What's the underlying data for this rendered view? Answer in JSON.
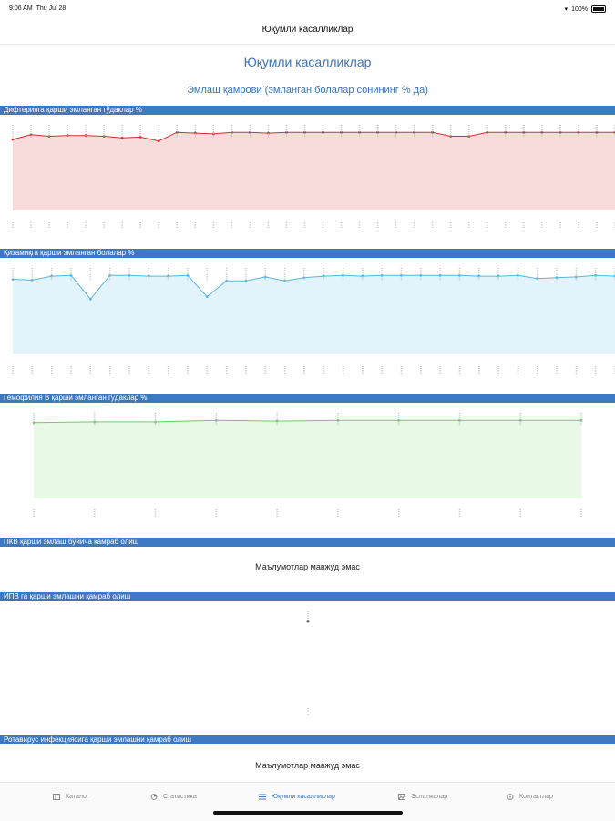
{
  "status_bar": {
    "time": "9:06 AM",
    "date": "Thu Jul 28",
    "battery": "100%"
  },
  "nav": {
    "title": "Юқумли касалликлар"
  },
  "page": {
    "title": "Юқумли касалликлар",
    "subtitle": "Эмлаш қамрови (эмланган болалар сонининг % да)"
  },
  "sections": [
    {
      "title": "Дифтерияга қарши эмланган гўдаклар %"
    },
    {
      "title": "Қизамиқга қарши эмланган болалар %"
    },
    {
      "title": "Гемофилия В қарши эмланган гўдаклар %"
    },
    {
      "title": "ПКВ қарши эмлаш бўйича қамраб олиш",
      "no_data": "Маълумотлар мавжуд эмас"
    },
    {
      "title": "ИПВ га қарши эмлашни қамраб олиш"
    },
    {
      "title": "Ротавирус инфекциясига қарши эмлашни қамраб олиш",
      "no_data": "Маълумотлар мавжуд эмас"
    }
  ],
  "tabs": [
    {
      "label": "Каталог",
      "icon": "catalog-icon"
    },
    {
      "label": "Статистика",
      "icon": "statistics-icon"
    },
    {
      "label": "Юқумли касалликлар",
      "icon": "diseases-icon",
      "active": true
    },
    {
      "label": "Эслатмалар",
      "icon": "reminders-icon"
    },
    {
      "label": "Контактлар",
      "icon": "contacts-icon"
    }
  ],
  "chart_data": [
    {
      "type": "area",
      "title": "Дифтерияга қарши эмланган гўдаклар %",
      "color": "#d0312d",
      "fill": "#f8dcdc",
      "values": [
        90,
        96,
        94,
        95,
        95,
        94,
        92,
        93,
        88,
        99,
        98,
        97,
        99,
        99,
        98,
        99,
        99,
        99,
        99,
        99,
        99,
        99,
        99,
        99,
        94,
        94,
        99,
        99,
        99,
        99,
        99,
        99,
        99,
        99
      ],
      "ylim": [
        0,
        120
      ]
    },
    {
      "type": "area",
      "title": "Қизамиқга қарши эмланган болалар %",
      "color": "#5ab6dd",
      "fill": "#e3f3fb",
      "values": [
        94,
        93,
        98,
        99,
        69,
        99,
        99,
        98,
        98,
        99,
        72,
        92,
        92,
        97,
        92,
        96,
        98,
        99,
        98,
        99,
        99,
        99,
        99,
        99,
        98,
        98,
        99,
        95,
        96,
        97,
        99,
        98
      ],
      "ylim": [
        0,
        120
      ]
    },
    {
      "type": "area",
      "title": "Гемофилия В қарши эмланган гўдаклар %",
      "color": "#6dcc6d",
      "fill": "#e8f9e6",
      "values": [
        96,
        97,
        97,
        99,
        98,
        99,
        99,
        99,
        99,
        99
      ],
      "ylim": [
        0,
        120
      ]
    },
    {
      "type": "scatter",
      "title": "ИПВ га қарши эмлашни қамраб олиш",
      "color": "#555555",
      "values": [
        96
      ]
    }
  ]
}
